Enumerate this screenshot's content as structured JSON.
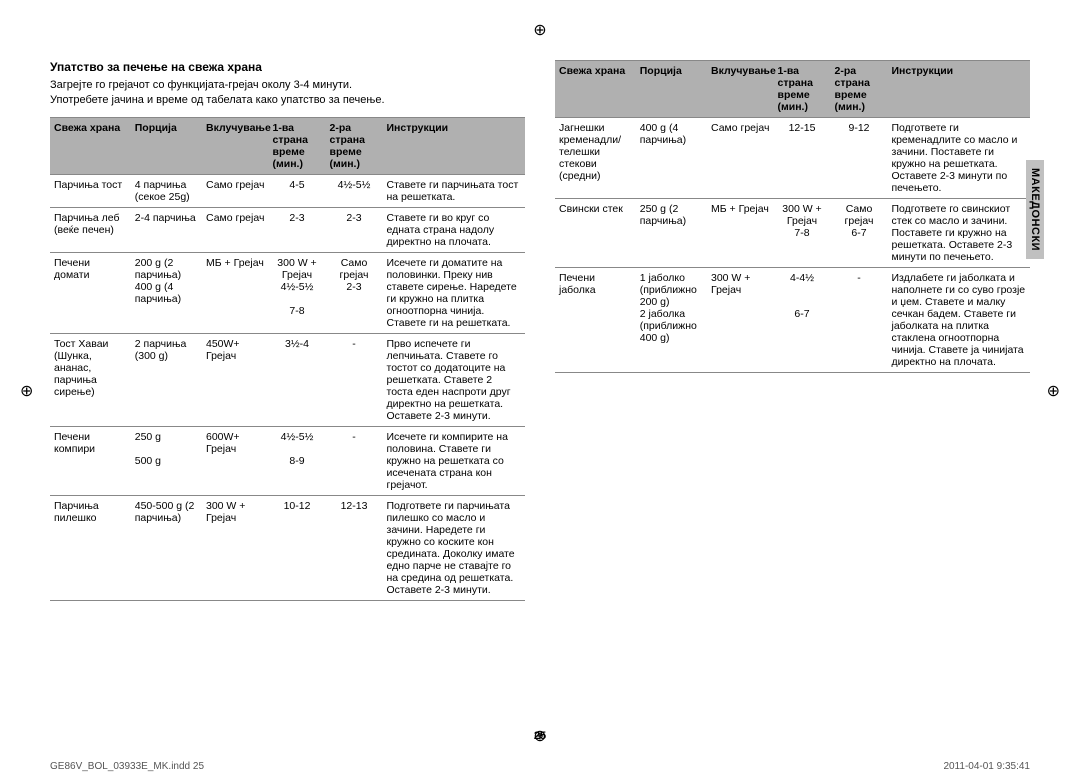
{
  "tab": "МАКЕДОНСКИ",
  "page_number": "25",
  "footer_left": "GE86V_BOL_03933E_MK.indd   25",
  "footer_right": "2011-04-01   9:35:41",
  "section": {
    "title": "Упатство за печење на свежа храна",
    "intro_line1": "Загрејте го грејачот со функцијата-грејач околу 3-4 минути.",
    "intro_line2": "Употребете јачина и време од табелата како упатство за печење."
  },
  "headers": {
    "food": "Свежа храна",
    "portion": "Порција",
    "power": "Вклучување",
    "side1": "1-ва страна време (мин.)",
    "side2": "2-ра страна време (мин.)",
    "instr": "Инструкции"
  },
  "left_rows": [
    {
      "food": "Парчиња тост",
      "portion": "4 парчиња (секое 25g)",
      "power": "Само грејач",
      "s1": "4-5",
      "s2": "4½-5½",
      "instr": "Ставете ги парчињата тост на решетката."
    },
    {
      "food": "Парчиња леб (веќе печен)",
      "portion": "2-4 парчиња",
      "power": "Само грејач",
      "s1": "2-3",
      "s2": "2-3",
      "instr": "Ставете ги во круг со едната страна надолу директно на плочата."
    },
    {
      "food": "Печени домати",
      "portion": "200 g (2 парчиња)\n400 g (4 парчиња)",
      "power": "МБ + Грејач",
      "s1": "300 W + Грејач\n4½-5½\n\n7-8",
      "s2": "Само грејач\n2-3",
      "instr": "Исечете ги доматите на половинки. Преку нив ставете сирење. Наредете ги кружно на плитка огноотпорна чинија. Ставете ги на решетката."
    },
    {
      "food": "Тост Хаваи (Шунка, ананас, парчиња сирење)",
      "portion": "2 парчиња (300 g)",
      "power": "450W+ Грејач",
      "s1": "3½-4",
      "s2": "-",
      "instr": "Прво испечете ги лепчињата. Ставете го тостот со додатоците на решетката. Ставете 2 тоста еден наспроти друг директно на решетката. Оставете 2-3 минути."
    },
    {
      "food": "Печени компири",
      "portion": "250 g\n\n500 g",
      "power": "600W+ Грејач",
      "s1": "4½-5½\n\n8-9",
      "s2": "-",
      "instr": "Исечете ги компирите на половина. Ставете ги кружно на решетката со исечената страна кон грејачот."
    },
    {
      "food": "Парчиња пилешко",
      "portion": "450-500 g (2 парчиња)",
      "power": "300 W + Грејач",
      "s1": "10-12",
      "s2": "12-13",
      "instr": "Подгответе ги парчињата пилешко со масло и зачини. Наредете ги кружно со коските кон средината. Доколку имате едно парче не ставајте го на средина од решетката. Оставете 2-3 минути."
    }
  ],
  "right_rows": [
    {
      "food": "Јагнешки кременадли/ телешки стекови (средни)",
      "portion": "400 g (4 парчиња)",
      "power": "Само грејач",
      "s1": "12-15",
      "s2": "9-12",
      "instr": "Подгответе ги кременадлите со масло и зачини. Поставете ги кружно на решетката. Оставете 2-3 минути по печењето."
    },
    {
      "food": "Свински стек",
      "portion": "250 g (2 парчиња)",
      "power": "МБ + Грејач",
      "s1": "300 W + Грејач\n7-8",
      "s2": "Само грејач\n6-7",
      "instr": "Подгответе го свинскиот стек со масло и зачини. Поставете ги кружно на решетката. Оставете 2-3 минути по печењето."
    },
    {
      "food": "Печени јаболка",
      "portion": "1 јаболко (приближно 200 g)\n2 јаболка (приближно 400 g)",
      "power": "300 W + Грејач",
      "s1": "4-4½\n\n\n6-7",
      "s2": "-",
      "instr": "Издлабете ги јаболката и наполнете ги со суво грозје и џем. Ставете и малку сечкан бадем. Ставете ги јаболката на плитка стаклена огноотпорна чинија. Ставете ја чинијата директно на плочата."
    }
  ],
  "col_widths": {
    "food": "17%",
    "portion": "15%",
    "power": "14%",
    "s1": "12%",
    "s2": "12%",
    "instr": "30%"
  }
}
